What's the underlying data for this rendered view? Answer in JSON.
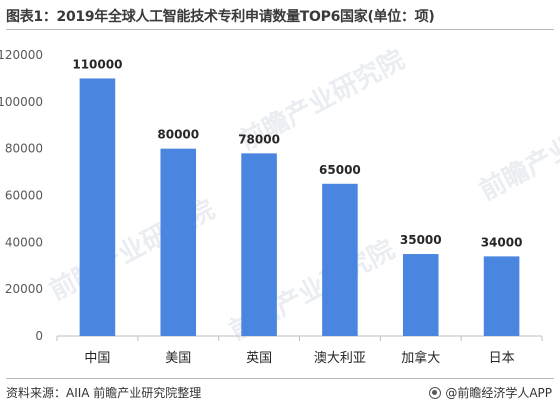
{
  "title": "图表1：2019年全球人工智能技术专利申请数量TOP6国家(单位：项)",
  "source": "资料来源：AIIA 前瞻产业研究院整理",
  "brand": "@前瞻经济学人APP",
  "watermark": "前瞻产业研究院",
  "colors": {
    "bar": "#4a86e0",
    "axis": "#bfbfbf",
    "tick": "#595959",
    "label": "#262626"
  },
  "chart_data": {
    "type": "bar",
    "categories": [
      "中国",
      "美国",
      "英国",
      "澳大利亚",
      "加拿大",
      "日本"
    ],
    "values": [
      110000,
      80000,
      78000,
      65000,
      35000,
      34000
    ],
    "data_labels": [
      "110000",
      "80000",
      "78000",
      "65000",
      "35000",
      "34000"
    ],
    "yticks": [
      "0",
      "20000",
      "40000",
      "60000",
      "80000",
      "100000",
      "120000"
    ],
    "ylim": [
      0,
      120000
    ],
    "grid": false,
    "legend": "none"
  }
}
